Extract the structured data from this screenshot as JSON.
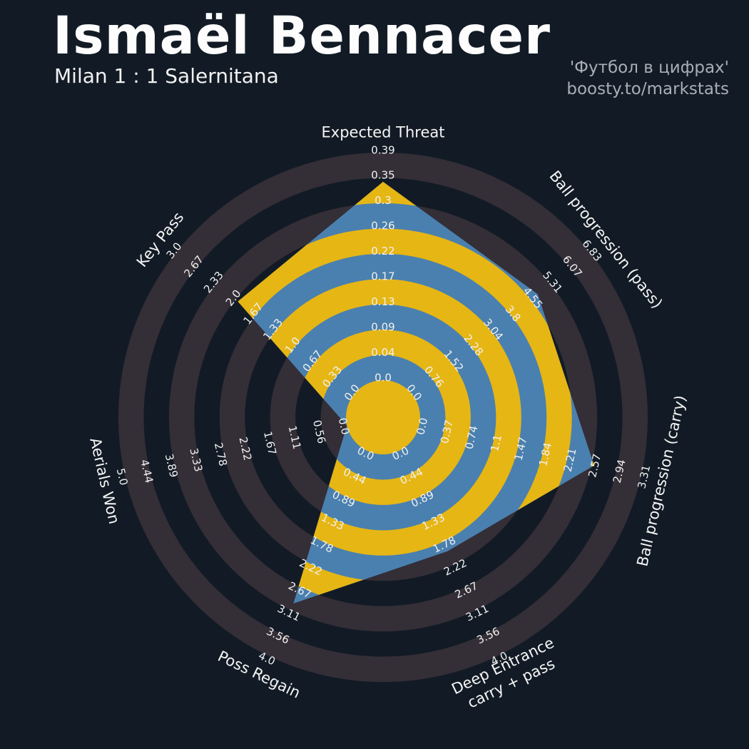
{
  "header": {
    "title": "Ismaël Bennacer",
    "subtitle": "Milan 1 : 1 Salernitana"
  },
  "watermark": {
    "line1": "'Футбол в цифрах'",
    "line2": "boosty.to/markstats"
  },
  "colors": {
    "background": "#121b25",
    "ring_light": "#342e37",
    "polygon_blue": "#4a80af",
    "ring_yellow": "#e6b614",
    "tick_text": "#f0f0f0",
    "axis_title_text": "#f5f5f5",
    "title_text": "#fdfdfd",
    "watermark_text": "#a9aeb6"
  },
  "chart_data": {
    "type": "radar",
    "title": "Ismaël Bennacer",
    "subtitle": "Milan 1 : 1 Salernitana",
    "num_rings": 9,
    "grid": "concentric-rings",
    "legend_position": "none",
    "axes": [
      {
        "label": "Expected Threat",
        "label_lines": [
          "Expected Threat"
        ],
        "min": 0.0,
        "max": 0.39,
        "value": 0.34,
        "ticks": [
          "0.0",
          "0.04",
          "0.09",
          "0.13",
          "0.17",
          "0.22",
          "0.26",
          "0.3",
          "0.35",
          "0.39"
        ]
      },
      {
        "label": "Ball progression (pass)",
        "label_lines": [
          "Ball progression (pass)"
        ],
        "min": 0.0,
        "max": 6.83,
        "value": 4.82,
        "ticks": [
          "0.0",
          "0.76",
          "1.52",
          "2.28",
          "3.04",
          "3.8",
          "4.55",
          "5.31",
          "6.07",
          "6.83"
        ]
      },
      {
        "label": "Ball progression (carry)",
        "label_lines": [
          "Ball progression (carry)"
        ],
        "min": 0.0,
        "max": 3.31,
        "value": 2.61,
        "ticks": [
          "0.0",
          "0.37",
          "0.74",
          "1.1",
          "1.47",
          "1.84",
          "2.21",
          "2.57",
          "2.94",
          "3.31"
        ]
      },
      {
        "label": "Deep Entrance carry + pass",
        "label_lines": [
          "Deep Entrance",
          "carry + pass"
        ],
        "min": 0.0,
        "max": 4.0,
        "value": 1.96,
        "ticks": [
          "0.0",
          "0.44",
          "0.89",
          "1.33",
          "1.78",
          "2.22",
          "2.67",
          "3.11",
          "3.56",
          "4.0"
        ]
      },
      {
        "label": "Poss Regain",
        "label_lines": [
          "Poss Regain"
        ],
        "min": 0.0,
        "max": 4.0,
        "value": 2.98,
        "ticks": [
          "0.0",
          "0.44",
          "0.89",
          "1.33",
          "1.78",
          "2.22",
          "2.67",
          "3.11",
          "3.56",
          "4.0"
        ]
      },
      {
        "label": "Aerials Won",
        "label_lines": [
          "Aerials Won"
        ],
        "min": 0.0,
        "max": 5.0,
        "value": 0.0,
        "ticks": [
          "0.0",
          "0.56",
          "1.11",
          "1.67",
          "2.22",
          "2.78",
          "3.33",
          "3.89",
          "4.44",
          "5.0"
        ]
      },
      {
        "label": "Key Pass",
        "label_lines": [
          "Key Pass"
        ],
        "min": 0.0,
        "max": 3.0,
        "value": 1.96,
        "ticks": [
          "0.0",
          "0.33",
          "0.67",
          "1.0",
          "1.33",
          "1.67",
          "2.0",
          "2.33",
          "2.67",
          "3.0"
        ]
      }
    ]
  }
}
